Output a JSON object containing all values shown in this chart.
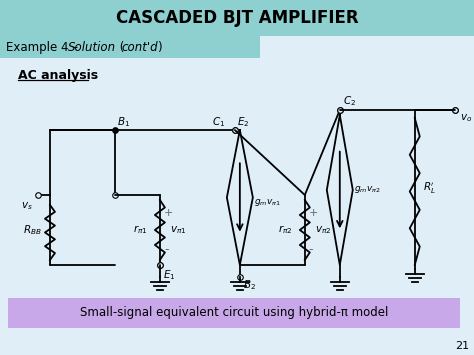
{
  "title": "CASCADED BJT AMPLIFIER",
  "title_bg": "#8ECFCF",
  "example_text": "Example 4 – Solution (cont'd)",
  "example_bg": "#8ECFCF",
  "ac_analysis": "AC analysis",
  "bottom_text": "Small-signal equivalent circuit using hybrid-π model",
  "bottom_bg": "#C8A8E8",
  "page_number": "21",
  "body_bg": "#E0EEF8"
}
